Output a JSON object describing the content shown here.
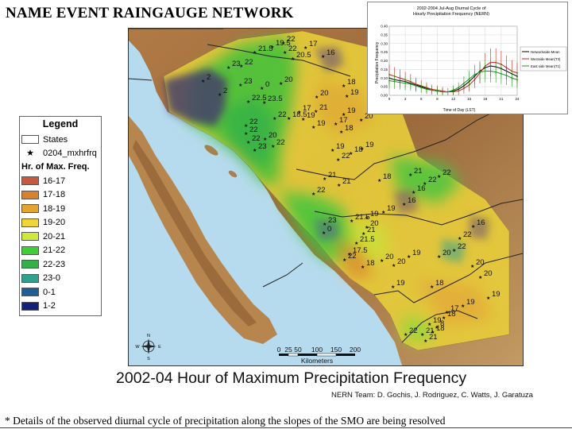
{
  "title": "NAME EVENT RAINGAUGE NETWORK",
  "map_caption": "2002-04 Hour of Maximum Precipitation Frequency",
  "credits": "NERN Team: D. Gochis, J. Rodriguez, C. Watts, J. Garatuza",
  "footnote": "* Details of the observed diurnal cycle of precipitation along the slopes of the SMO are being resolved",
  "legend": {
    "title": "Legend",
    "states_label": "States",
    "points_label": "0204_mxhrfrq",
    "class_header": "Hr. of Max. Freq.",
    "classes": [
      {
        "label": "16-17",
        "color": "#c8583f"
      },
      {
        "label": "17-18",
        "color": "#d9822b"
      },
      {
        "label": "18-19",
        "color": "#e2a532"
      },
      {
        "label": "19-20",
        "color": "#f0d438"
      },
      {
        "label": "20-21",
        "color": "#cfe83a"
      },
      {
        "label": "21-22",
        "color": "#3fce34"
      },
      {
        "label": "22-23",
        "color": "#33b04a"
      },
      {
        "label": "23-0",
        "color": "#2ea08c"
      },
      {
        "label": "0-1",
        "color": "#1f5e96"
      },
      {
        "label": "1-2",
        "color": "#13237a"
      }
    ]
  },
  "scale_bar": {
    "ticks": [
      "0",
      "25",
      "50",
      "100",
      "150",
      "200"
    ],
    "unit": "Kilometers"
  },
  "compass_labels": [
    "N",
    "S",
    "E",
    "W"
  ],
  "station_labels": [
    {
      "t": "21.5",
      "x": 324,
      "y": 63
    },
    {
      "t": "19.5",
      "x": 346,
      "y": 56
    },
    {
      "t": "22",
      "x": 360,
      "y": 51
    },
    {
      "t": "22",
      "x": 362,
      "y": 63
    },
    {
      "t": "20.5",
      "x": 372,
      "y": 71
    },
    {
      "t": "17",
      "x": 388,
      "y": 57
    },
    {
      "t": "16",
      "x": 410,
      "y": 68
    },
    {
      "t": "23",
      "x": 291,
      "y": 82
    },
    {
      "t": "22",
      "x": 307,
      "y": 80
    },
    {
      "t": "2",
      "x": 259,
      "y": 99
    },
    {
      "t": "2",
      "x": 280,
      "y": 116
    },
    {
      "t": "23",
      "x": 306,
      "y": 104
    },
    {
      "t": "0",
      "x": 333,
      "y": 108
    },
    {
      "t": "20",
      "x": 357,
      "y": 102
    },
    {
      "t": "18",
      "x": 436,
      "y": 105
    },
    {
      "t": "19",
      "x": 440,
      "y": 118
    },
    {
      "t": "22.5",
      "x": 316,
      "y": 125
    },
    {
      "t": "23.5",
      "x": 336,
      "y": 126
    },
    {
      "t": "20",
      "x": 402,
      "y": 119
    },
    {
      "t": "17",
      "x": 380,
      "y": 138
    },
    {
      "t": "21",
      "x": 401,
      "y": 137
    },
    {
      "t": "19",
      "x": 436,
      "y": 141
    },
    {
      "t": "22",
      "x": 349,
      "y": 146
    },
    {
      "t": "18.5",
      "x": 367,
      "y": 146
    },
    {
      "t": "19",
      "x": 385,
      "y": 147
    },
    {
      "t": "17",
      "x": 426,
      "y": 153
    },
    {
      "t": "18",
      "x": 433,
      "y": 163
    },
    {
      "t": "22",
      "x": 313,
      "y": 155
    },
    {
      "t": "22",
      "x": 313,
      "y": 165
    },
    {
      "t": "19",
      "x": 398,
      "y": 157
    },
    {
      "t": "20",
      "x": 458,
      "y": 148
    },
    {
      "t": "22",
      "x": 316,
      "y": 176
    },
    {
      "t": "20",
      "x": 337,
      "y": 172
    },
    {
      "t": "23",
      "x": 324,
      "y": 186
    },
    {
      "t": "22",
      "x": 347,
      "y": 181
    },
    {
      "t": "19",
      "x": 422,
      "y": 186
    },
    {
      "t": "19",
      "x": 459,
      "y": 184
    },
    {
      "t": "18",
      "x": 445,
      "y": 190
    },
    {
      "t": "22",
      "x": 429,
      "y": 198
    },
    {
      "t": "21",
      "x": 412,
      "y": 222
    },
    {
      "t": "21",
      "x": 430,
      "y": 230
    },
    {
      "t": "22",
      "x": 398,
      "y": 241
    },
    {
      "t": "18",
      "x": 481,
      "y": 224
    },
    {
      "t": "21",
      "x": 520,
      "y": 217
    },
    {
      "t": "22",
      "x": 556,
      "y": 219
    },
    {
      "t": "22",
      "x": 538,
      "y": 228
    },
    {
      "t": "16",
      "x": 524,
      "y": 239
    },
    {
      "t": "16",
      "x": 512,
      "y": 254
    },
    {
      "t": "19",
      "x": 486,
      "y": 264
    },
    {
      "t": "23",
      "x": 412,
      "y": 279
    },
    {
      "t": "0",
      "x": 411,
      "y": 290
    },
    {
      "t": "21.5",
      "x": 446,
      "y": 275
    },
    {
      "t": "19",
      "x": 465,
      "y": 271
    },
    {
      "t": "20",
      "x": 465,
      "y": 283
    },
    {
      "t": "21",
      "x": 461,
      "y": 291
    },
    {
      "t": "21.5",
      "x": 452,
      "y": 303
    },
    {
      "t": "16",
      "x": 599,
      "y": 282
    },
    {
      "t": "22",
      "x": 582,
      "y": 297
    },
    {
      "t": "22",
      "x": 575,
      "y": 312
    },
    {
      "t": "20",
      "x": 556,
      "y": 320
    },
    {
      "t": "17.5",
      "x": 443,
      "y": 317
    },
    {
      "t": "22",
      "x": 437,
      "y": 324
    },
    {
      "t": "18",
      "x": 460,
      "y": 333
    },
    {
      "t": "20",
      "x": 484,
      "y": 325
    },
    {
      "t": "20",
      "x": 499,
      "y": 331
    },
    {
      "t": "19",
      "x": 518,
      "y": 320
    },
    {
      "t": "20",
      "x": 598,
      "y": 332
    },
    {
      "t": "20",
      "x": 608,
      "y": 346
    },
    {
      "t": "19",
      "x": 498,
      "y": 358
    },
    {
      "t": "18",
      "x": 547,
      "y": 358
    },
    {
      "t": "19",
      "x": 618,
      "y": 372
    },
    {
      "t": "19",
      "x": 586,
      "y": 382
    },
    {
      "t": "17",
      "x": 566,
      "y": 390
    },
    {
      "t": "18",
      "x": 562,
      "y": 397
    },
    {
      "t": "19",
      "x": 544,
      "y": 405
    },
    {
      "t": "18",
      "x": 548,
      "y": 415
    },
    {
      "t": "21",
      "x": 535,
      "y": 418
    },
    {
      "t": "22",
      "x": 514,
      "y": 418
    },
    {
      "t": "21",
      "x": 539,
      "y": 426
    },
    {
      "t": "8",
      "x": 553,
      "y": 409
    }
  ],
  "inset": {
    "title_line1": "2002-2004 Jul-Aug Diurnal Cycle of",
    "title_line2": "Hourly Precipitation Frequency (NERN)",
    "ylabel": "Precipitation Frequency",
    "xlabel": "Time of Day (LST)",
    "legend_entries": [
      "Networkwide Mean",
      "Westside Mean(T3)",
      "East side Mean(T1)"
    ],
    "series_colors": [
      "#000000",
      "#cc2222",
      "#1a9a1a"
    ]
  },
  "chart_data": {
    "type": "line",
    "title": "2002-2004 Jul-Aug Diurnal Cycle of Hourly Precipitation Frequency (NERN)",
    "xlabel": "Time of Day (LST)",
    "ylabel": "Precipitation Frequency",
    "xlim": [
      0,
      24
    ],
    "ylim": [
      0,
      0.4
    ],
    "x_ticks": [
      0,
      3,
      6,
      9,
      12,
      15,
      18,
      21,
      24
    ],
    "y_ticks": [
      0.0,
      0.05,
      0.1,
      0.15,
      0.2,
      0.25,
      0.3,
      0.35,
      0.4
    ],
    "x": [
      0,
      1,
      2,
      3,
      4,
      5,
      6,
      7,
      8,
      9,
      10,
      11,
      12,
      13,
      14,
      15,
      16,
      17,
      18,
      19,
      20,
      21,
      22,
      23,
      24
    ],
    "series": [
      {
        "name": "Networkwide Mean",
        "values": [
          0.1,
          0.09,
          0.085,
          0.08,
          0.07,
          0.06,
          0.05,
          0.04,
          0.03,
          0.025,
          0.02,
          0.02,
          0.025,
          0.035,
          0.055,
          0.08,
          0.11,
          0.14,
          0.16,
          0.17,
          0.165,
          0.155,
          0.14,
          0.125,
          0.11
        ]
      },
      {
        "name": "Westside Mean(T3)",
        "values": [
          0.12,
          0.11,
          0.1,
          0.09,
          0.08,
          0.065,
          0.055,
          0.045,
          0.035,
          0.03,
          0.025,
          0.02,
          0.02,
          0.025,
          0.04,
          0.06,
          0.09,
          0.13,
          0.17,
          0.19,
          0.19,
          0.18,
          0.16,
          0.14,
          0.13
        ]
      },
      {
        "name": "East side Mean(T1)",
        "values": [
          0.085,
          0.08,
          0.075,
          0.07,
          0.065,
          0.055,
          0.045,
          0.035,
          0.03,
          0.025,
          0.02,
          0.02,
          0.03,
          0.045,
          0.07,
          0.095,
          0.12,
          0.135,
          0.14,
          0.14,
          0.135,
          0.125,
          0.115,
          0.1,
          0.09
        ]
      }
    ]
  }
}
